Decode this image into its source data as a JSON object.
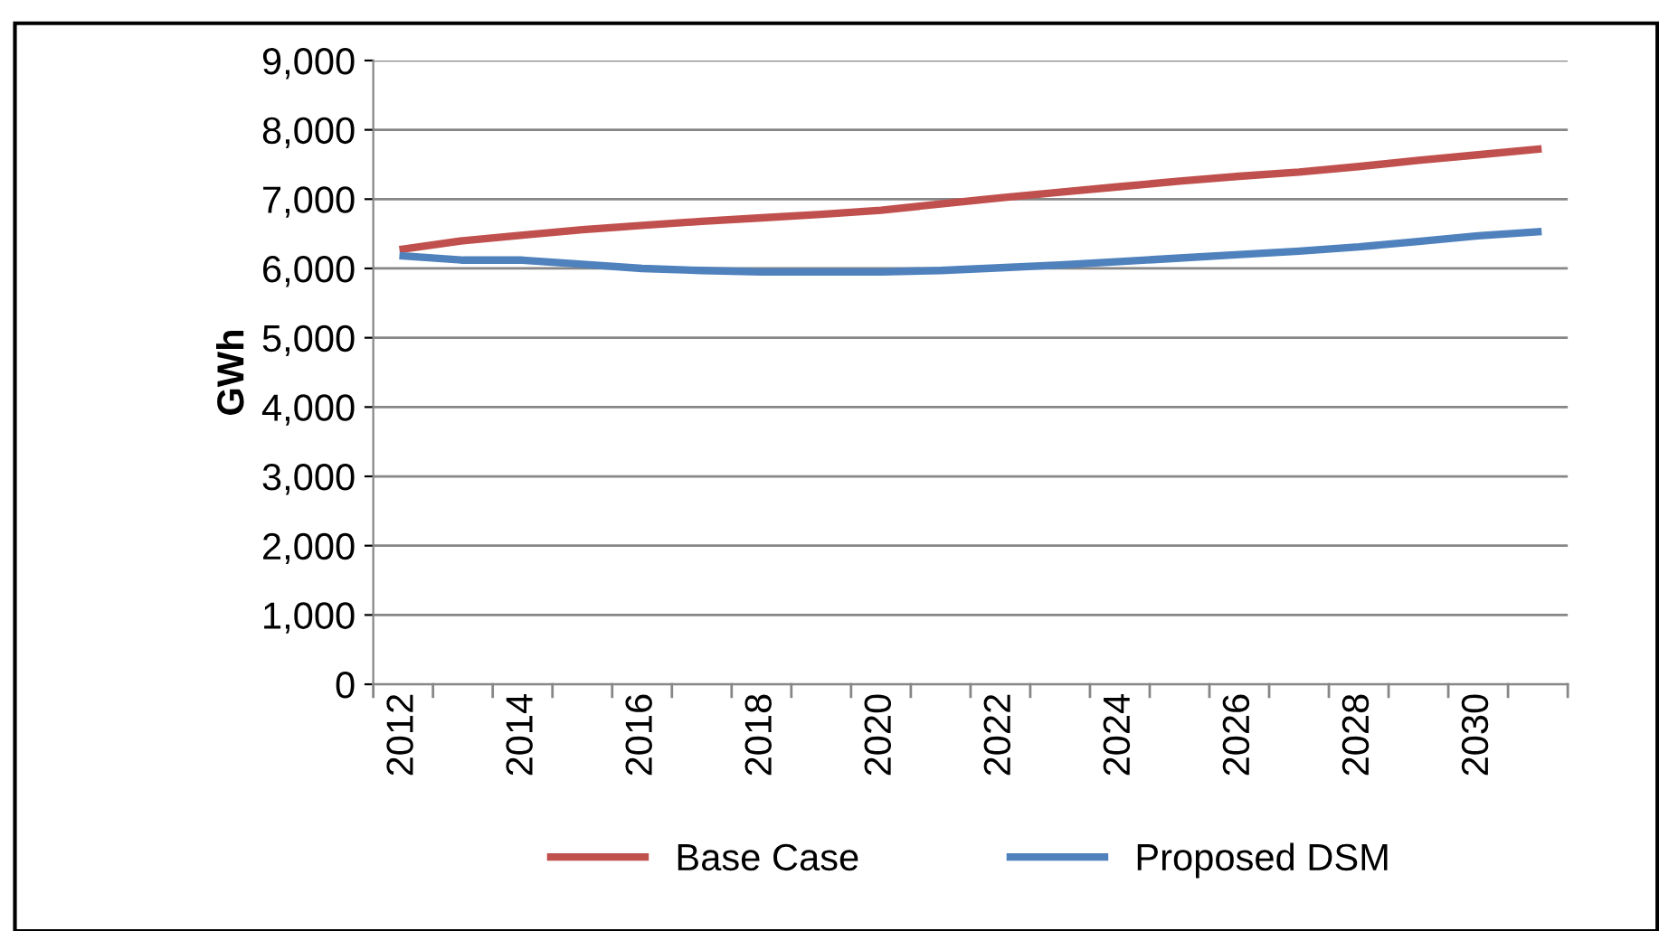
{
  "chart_data": {
    "type": "line",
    "ylabel": "GWh",
    "categories": [
      "2012",
      null,
      "2014",
      null,
      "2016",
      null,
      "2018",
      null,
      "2020",
      null,
      "2022",
      null,
      "2024",
      null,
      "2026",
      null,
      "2028",
      null,
      "2030",
      null
    ],
    "series": [
      {
        "name": "Base Case",
        "color": "#c0504d",
        "values": [
          6280,
          6400,
          6480,
          6560,
          6620,
          6680,
          6730,
          6780,
          6840,
          6930,
          7020,
          7100,
          7180,
          7260,
          7330,
          7390,
          7470,
          7560,
          7640,
          7720
        ]
      },
      {
        "name": "Proposed DSM",
        "color": "#4f81bd",
        "values": [
          6180,
          6120,
          6120,
          6060,
          6000,
          5970,
          5950,
          5950,
          5950,
          5970,
          6010,
          6050,
          6100,
          6150,
          6200,
          6250,
          6310,
          6390,
          6470,
          6530
        ]
      }
    ],
    "ylim": [
      0,
      9000
    ],
    "yticks": [
      {
        "value": 0,
        "label": "0"
      },
      {
        "value": 1000,
        "label": "1,000"
      },
      {
        "value": 2000,
        "label": "2,000"
      },
      {
        "value": 3000,
        "label": "3,000"
      },
      {
        "value": 4000,
        "label": "4,000"
      },
      {
        "value": 5000,
        "label": "5,000"
      },
      {
        "value": 6000,
        "label": "6,000"
      },
      {
        "value": 7000,
        "label": "7,000"
      },
      {
        "value": 8000,
        "label": "8,000"
      },
      {
        "value": 9000,
        "label": "9,000"
      }
    ],
    "grid": "y",
    "legend": "bottom",
    "marker": "none",
    "line_style": "solid"
  }
}
